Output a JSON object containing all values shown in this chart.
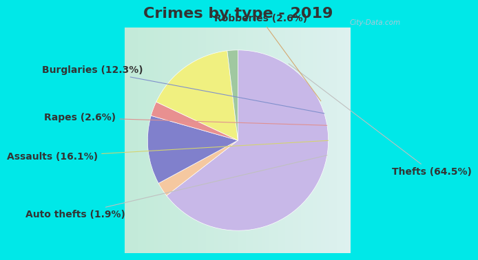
{
  "title": "Crimes by type - 2019",
  "labels_ordered": [
    "Thefts",
    "Robberies",
    "Burglaries",
    "Rapes",
    "Assaults",
    "Auto thefts"
  ],
  "values_ordered": [
    64.5,
    2.6,
    12.3,
    2.6,
    16.1,
    1.9
  ],
  "colors_ordered": [
    "#c8b8e8",
    "#f5c8a0",
    "#8080cc",
    "#e89090",
    "#f0f080",
    "#a0c8a0"
  ],
  "label_texts": [
    "Thefts (64.5%)",
    "Robberies (2.6%)",
    "Burglaries (12.3%)",
    "Rapes (2.6%)",
    "Assaults (16.1%)",
    "Auto thefts (1.9%)"
  ],
  "title_fontsize": 16,
  "label_fontsize": 10,
  "cyan_border": "#00e8e8",
  "inner_bg_left": "#b8e8d0",
  "inner_bg_right": "#e8f0f8",
  "startangle": 90
}
